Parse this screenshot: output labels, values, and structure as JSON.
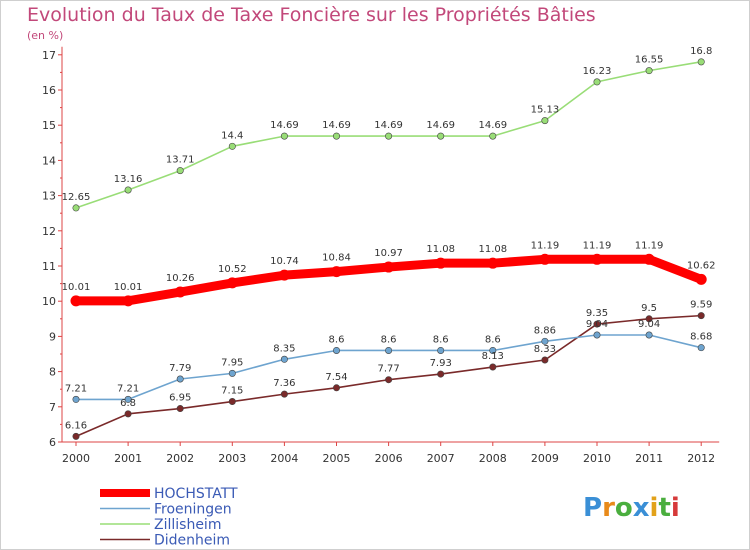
{
  "chart_data": {
    "type": "line",
    "title": "Evolution du Taux de Taxe Foncière sur les Propriétés Bâties",
    "subtitle": "(en %)",
    "x": [
      "2000",
      "2001",
      "2002",
      "2003",
      "2004",
      "2005",
      "2006",
      "2007",
      "2008",
      "2009",
      "2010",
      "2011",
      "2012"
    ],
    "ylim": [
      6,
      17
    ],
    "yticks": [
      6,
      7,
      8,
      9,
      10,
      11,
      12,
      13,
      14,
      15,
      16,
      17
    ],
    "grid": false,
    "legend_position": "bottom-left",
    "series": [
      {
        "name": "HOCHSTATT",
        "color": "#ff0000",
        "values": [
          10.01,
          10.01,
          10.26,
          10.52,
          10.74,
          10.84,
          10.97,
          11.08,
          11.08,
          11.19,
          11.19,
          11.19,
          10.62
        ],
        "labels": [
          "10.01",
          "10.01",
          "10.26",
          "10.52",
          "10.74",
          "10.84",
          "10.97",
          "11.08",
          "11.08",
          "11.19",
          "11.19",
          "11.19",
          "10.62"
        ]
      },
      {
        "name": "Froeningen",
        "color": "#6ea4cf",
        "values": [
          7.21,
          7.21,
          7.79,
          7.95,
          8.35,
          8.6,
          8.6,
          8.6,
          8.6,
          8.86,
          9.04,
          9.04,
          8.68
        ],
        "labels": [
          "7.21",
          "7.21",
          "7.79",
          "7.95",
          "8.35",
          "8.6",
          "8.6",
          "8.6",
          "8.6",
          "8.86",
          "9.04",
          "9.04",
          "8.68"
        ]
      },
      {
        "name": "Zillisheim",
        "color": "#99dd77",
        "values": [
          12.65,
          13.16,
          13.71,
          14.4,
          14.69,
          14.69,
          14.69,
          14.69,
          14.69,
          15.13,
          16.23,
          16.55,
          16.8
        ],
        "labels": [
          "12.65",
          "13.16",
          "13.71",
          "14.4",
          "14.69",
          "14.69",
          "14.69",
          "14.69",
          "14.69",
          "15.13",
          "16.23",
          "16.55",
          "16.8"
        ]
      },
      {
        "name": "Didenheim",
        "color": "#7a2a2a",
        "values": [
          6.16,
          6.8,
          6.95,
          7.15,
          7.36,
          7.54,
          7.77,
          7.93,
          8.13,
          8.33,
          9.35,
          9.5,
          9.59
        ],
        "labels": [
          "6.16",
          "6.8",
          "6.95",
          "7.15",
          "7.36",
          "7.54",
          "7.77",
          "7.93",
          "8.13",
          "8.33",
          "9.35",
          "9.5",
          "9.59"
        ]
      }
    ]
  },
  "logo": {
    "text": "Proxiti"
  }
}
